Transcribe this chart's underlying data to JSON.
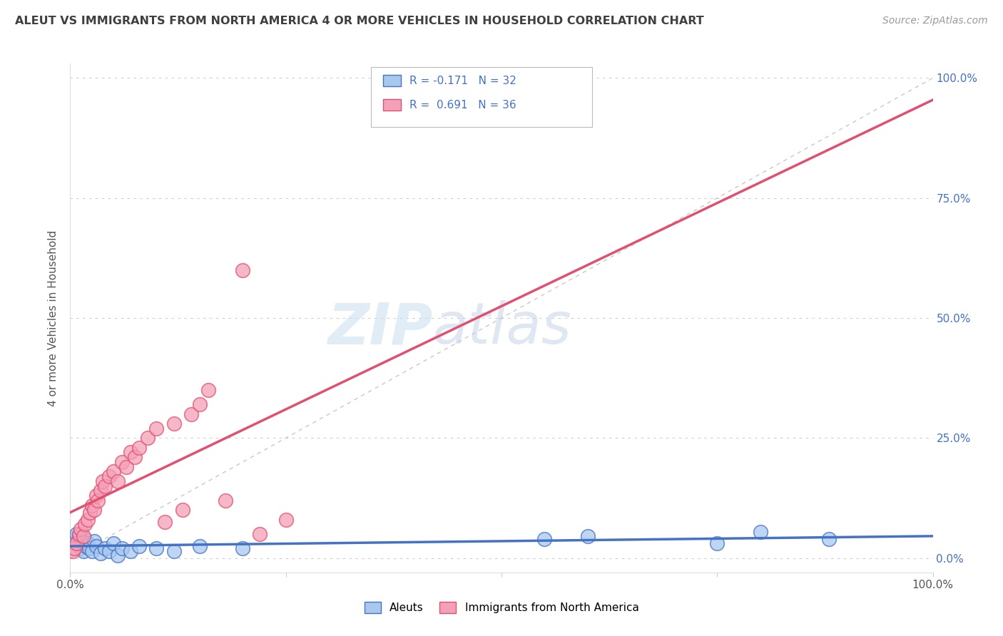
{
  "title": "ALEUT VS IMMIGRANTS FROM NORTH AMERICA 4 OR MORE VEHICLES IN HOUSEHOLD CORRELATION CHART",
  "source": "Source: ZipAtlas.com",
  "ylabel": "4 or more Vehicles in Household",
  "legend_label1": "Aleuts",
  "legend_label2": "Immigrants from North America",
  "R1": -0.171,
  "N1": 32,
  "R2": 0.691,
  "N2": 36,
  "color_aleut": "#a8c8f0",
  "color_immig": "#f4a0b8",
  "line_color_aleut": "#4472c4",
  "line_color_immig": "#e05070",
  "diagonal_color": "#c8c8c8",
  "watermark_zip": "ZIP",
  "watermark_atlas": "atlas",
  "title_color": "#404040",
  "source_color": "#999999",
  "axis_label_color": "#4472c4",
  "legend_R_color": "#4472c4",
  "scatter_aleut": [
    [
      0.3,
      3.5
    ],
    [
      0.5,
      4.0
    ],
    [
      0.7,
      5.0
    ],
    [
      0.8,
      3.0
    ],
    [
      1.0,
      4.5
    ],
    [
      1.2,
      2.0
    ],
    [
      1.4,
      3.5
    ],
    [
      1.5,
      1.5
    ],
    [
      1.7,
      4.0
    ],
    [
      1.8,
      2.5
    ],
    [
      2.0,
      3.0
    ],
    [
      2.2,
      2.0
    ],
    [
      2.5,
      1.5
    ],
    [
      2.8,
      3.5
    ],
    [
      3.0,
      2.5
    ],
    [
      3.5,
      1.0
    ],
    [
      4.0,
      2.0
    ],
    [
      4.5,
      1.5
    ],
    [
      5.0,
      3.0
    ],
    [
      5.5,
      0.5
    ],
    [
      6.0,
      2.0
    ],
    [
      7.0,
      1.5
    ],
    [
      8.0,
      2.5
    ],
    [
      10.0,
      2.0
    ],
    [
      12.0,
      1.5
    ],
    [
      15.0,
      2.5
    ],
    [
      20.0,
      2.0
    ],
    [
      55.0,
      4.0
    ],
    [
      60.0,
      4.5
    ],
    [
      75.0,
      3.0
    ],
    [
      80.0,
      5.5
    ],
    [
      88.0,
      4.0
    ]
  ],
  "scatter_immig": [
    [
      0.3,
      1.5
    ],
    [
      0.5,
      2.0
    ],
    [
      0.7,
      3.0
    ],
    [
      1.0,
      5.0
    ],
    [
      1.2,
      6.0
    ],
    [
      1.5,
      4.5
    ],
    [
      1.7,
      7.0
    ],
    [
      2.0,
      8.0
    ],
    [
      2.3,
      9.5
    ],
    [
      2.5,
      11.0
    ],
    [
      2.8,
      10.0
    ],
    [
      3.0,
      13.0
    ],
    [
      3.2,
      12.0
    ],
    [
      3.5,
      14.0
    ],
    [
      3.8,
      16.0
    ],
    [
      4.0,
      15.0
    ],
    [
      4.5,
      17.0
    ],
    [
      5.0,
      18.0
    ],
    [
      5.5,
      16.0
    ],
    [
      6.0,
      20.0
    ],
    [
      6.5,
      19.0
    ],
    [
      7.0,
      22.0
    ],
    [
      7.5,
      21.0
    ],
    [
      8.0,
      23.0
    ],
    [
      9.0,
      25.0
    ],
    [
      10.0,
      27.0
    ],
    [
      11.0,
      7.5
    ],
    [
      12.0,
      28.0
    ],
    [
      13.0,
      10.0
    ],
    [
      14.0,
      30.0
    ],
    [
      15.0,
      32.0
    ],
    [
      16.0,
      35.0
    ],
    [
      18.0,
      12.0
    ],
    [
      20.0,
      60.0
    ],
    [
      22.0,
      5.0
    ],
    [
      25.0,
      8.0
    ]
  ],
  "xmin": 0,
  "xmax": 100,
  "ymin": -3,
  "ymax": 103
}
